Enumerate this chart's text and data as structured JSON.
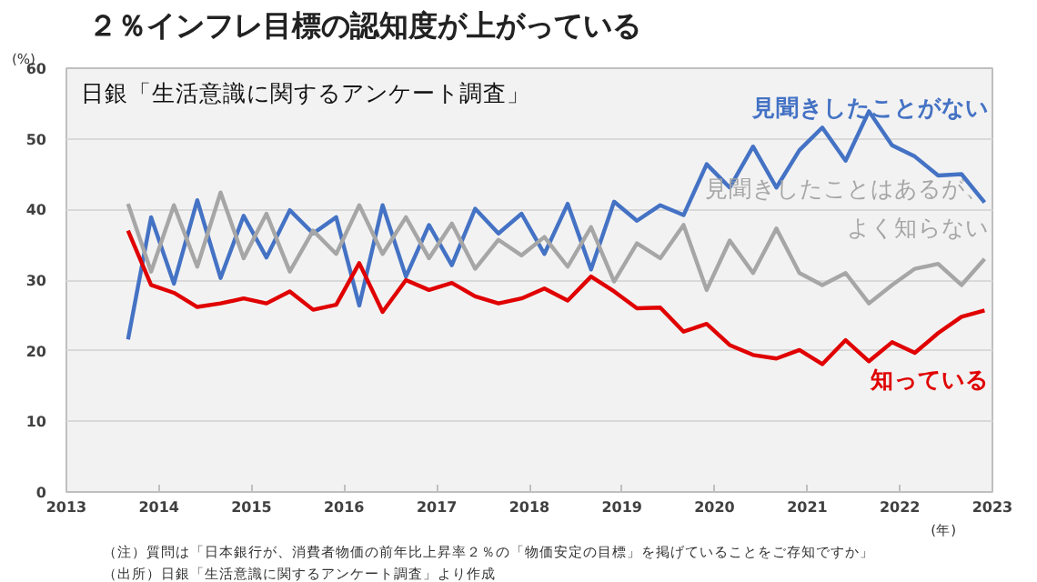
{
  "chart_data": {
    "type": "line",
    "title": "２％インフレ目標の認知度が上がっている",
    "subtitle": "日銀「生活意識に関するアンケート調査」",
    "ylabel": "(%)",
    "xlabel": "(年)",
    "annotations": [
      "（注）質問は「日本銀行が、消費者物価の前年比上昇率２％の「物価安定の目標」を掲げていることをご存知ですか」",
      "（出所）日銀「生活意識に関するアンケート調査」より作成"
    ],
    "x": [
      "2013-09",
      "2013-12",
      "2014-03",
      "2014-06",
      "2014-09",
      "2014-12",
      "2015-03",
      "2015-06",
      "2015-09",
      "2015-12",
      "2016-03",
      "2016-06",
      "2016-09",
      "2016-12",
      "2017-03",
      "2017-06",
      "2017-09",
      "2017-12",
      "2018-03",
      "2018-06",
      "2018-09",
      "2018-12",
      "2019-03",
      "2019-06",
      "2019-09",
      "2019-12",
      "2020-03",
      "2020-06",
      "2020-09",
      "2020-12",
      "2021-03",
      "2021-06",
      "2021-09",
      "2021-12",
      "2022-03",
      "2022-06",
      "2022-09",
      "2022-12"
    ],
    "series": [
      {
        "name": "見聞きしたことがない",
        "color": "#4472c4",
        "values": [
          21.6,
          38.9,
          29.5,
          41.3,
          30.3,
          39.1,
          33.2,
          39.9,
          36.6,
          38.9,
          26.4,
          40.6,
          30.5,
          37.8,
          32.1,
          40.1,
          36.6,
          39.4,
          33.7,
          40.8,
          31.5,
          41.1,
          38.4,
          40.6,
          39.2,
          46.4,
          43.1,
          48.9,
          43.1,
          48.4,
          51.6,
          46.9,
          53.9,
          49.1,
          47.5,
          44.8,
          45.0,
          41.0
        ]
      },
      {
        "name": "見聞きしたことはあるが、よく知らない",
        "color": "#a6a6a6",
        "values": [
          40.8,
          31.2,
          40.6,
          31.9,
          42.4,
          33.1,
          39.4,
          31.2,
          37.0,
          33.7,
          40.6,
          33.7,
          38.9,
          33.1,
          38.0,
          31.6,
          35.7,
          33.5,
          36.1,
          31.9,
          37.5,
          29.8,
          35.2,
          33.1,
          37.8,
          28.6,
          35.6,
          31.0,
          37.3,
          31.0,
          29.3,
          31.0,
          26.7,
          29.3,
          31.6,
          32.3,
          29.3,
          33.0
        ]
      },
      {
        "name": "知っている",
        "color": "#e00000",
        "values": [
          37.0,
          29.3,
          28.2,
          26.2,
          26.7,
          27.4,
          26.7,
          28.4,
          25.8,
          26.5,
          32.4,
          25.5,
          30.0,
          28.6,
          29.6,
          27.7,
          26.7,
          27.4,
          28.8,
          27.1,
          30.5,
          28.4,
          26.0,
          26.1,
          22.7,
          23.8,
          20.8,
          19.4,
          18.9,
          20.1,
          18.1,
          21.5,
          18.5,
          21.2,
          19.7,
          22.5,
          24.8,
          25.7
        ]
      }
    ],
    "xlim": [
      "2013",
      "2023"
    ],
    "xticks": [
      "2013",
      "2014",
      "2015",
      "2016",
      "2017",
      "2018",
      "2019",
      "2020",
      "2021",
      "2022",
      "2023"
    ],
    "ylim": [
      0,
      60
    ],
    "yticks": [
      0,
      10,
      20,
      30,
      40,
      50,
      60
    ],
    "grid": "y",
    "marker": "none",
    "line_style": "solid"
  }
}
